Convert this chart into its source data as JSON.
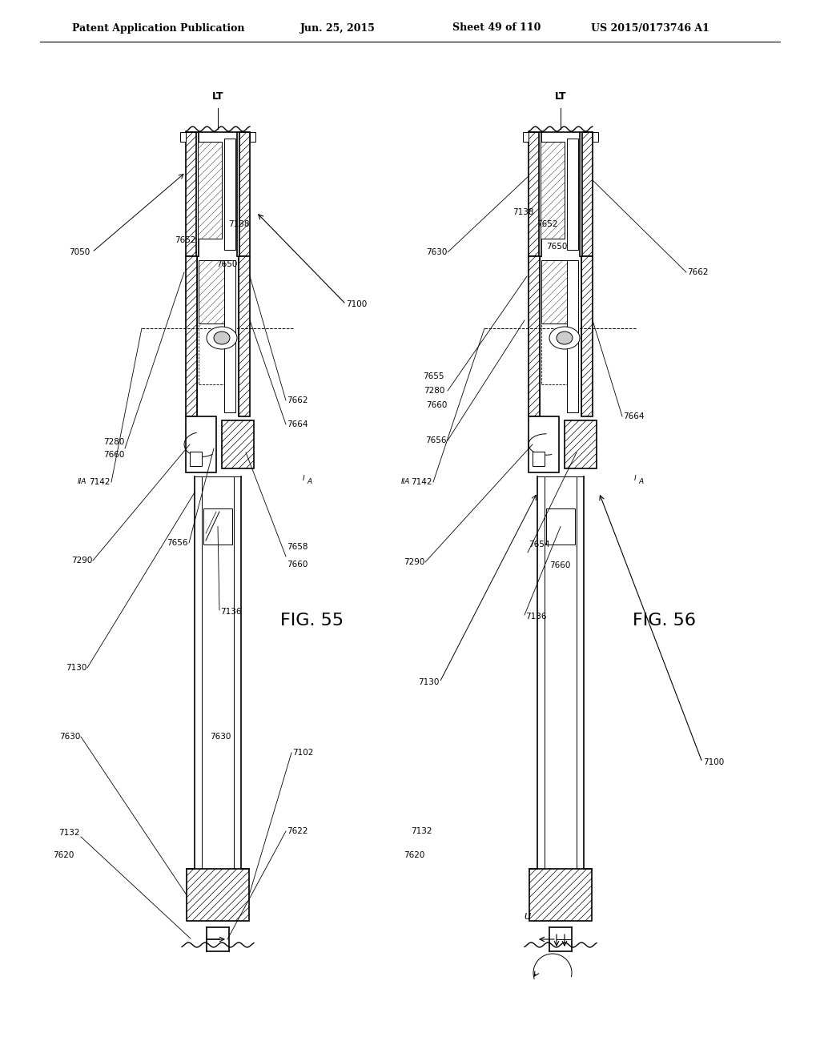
{
  "bg_color": "#ffffff",
  "line_color": "#000000",
  "header_text": "Patent Application Publication",
  "header_date": "Jun. 25, 2015",
  "header_sheet": "Sheet 49 of 110",
  "header_patent": "US 2015/0173746 A1",
  "fig55_label": "FIG. 55",
  "fig56_label": "FIG. 56",
  "font_size_header": 9,
  "font_size_fig": 16,
  "font_size_label": 7.5
}
